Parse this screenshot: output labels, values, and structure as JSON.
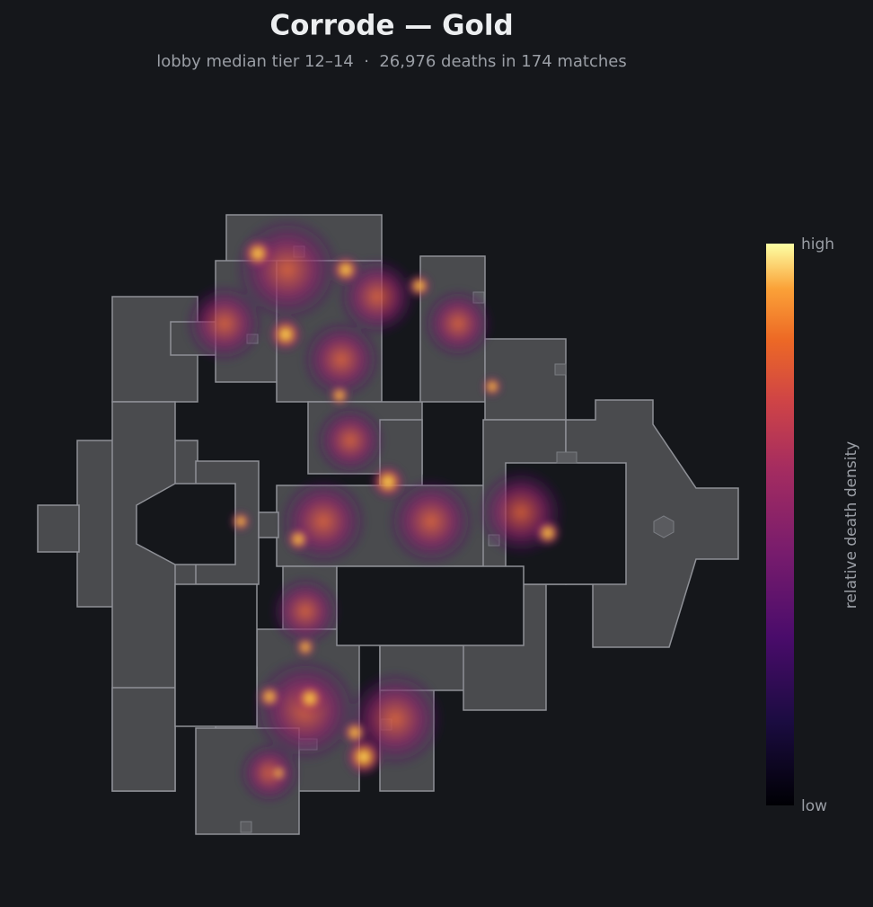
{
  "header": {
    "title": "Corrode — Gold",
    "subtitle": "lobby median tier 12–14  ·  26,976 deaths in 174 matches"
  },
  "colorbar": {
    "high": "high",
    "low": "low",
    "label": "relative death density"
  }
}
